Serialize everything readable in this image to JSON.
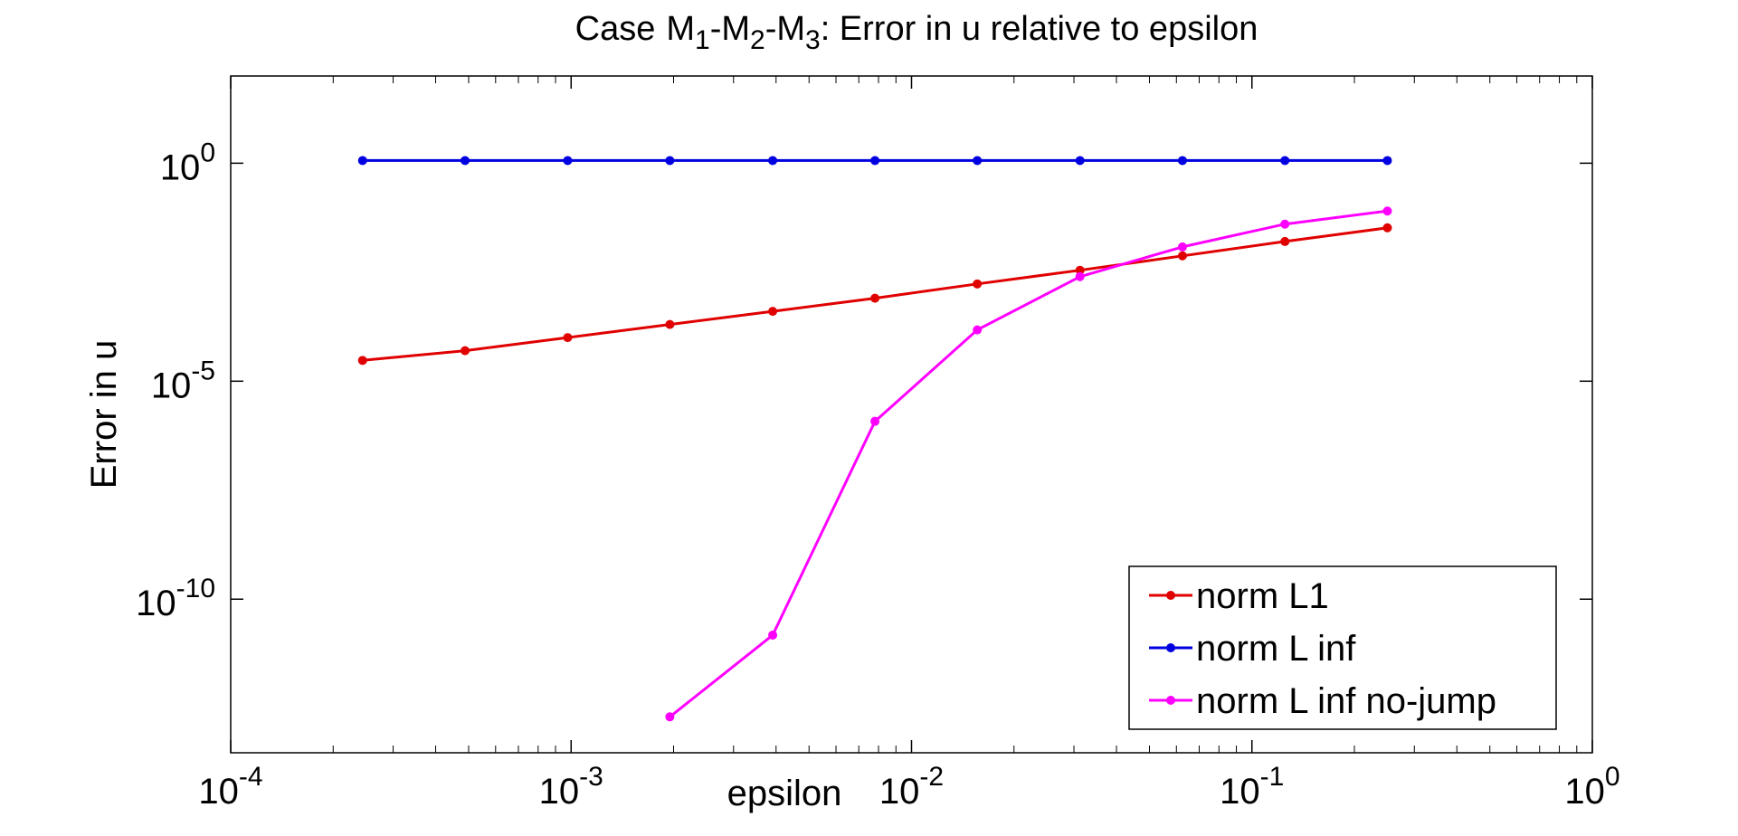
{
  "chart_data": {
    "type": "line",
    "title": {
      "prefix": "Case",
      "parts": [
        {
          "text": "M",
          "sub": "1"
        },
        {
          "text": "-M",
          "sub": "2"
        },
        {
          "text": "-M",
          "sub": "3"
        }
      ],
      "suffix": ": Error in u relative to epsilon"
    },
    "xlabel": "epsilon",
    "ylabel": "Error in u",
    "x_scale": "log",
    "y_scale": "log",
    "xlim": [
      0.0001,
      1
    ],
    "ylim": [
      3e-14,
      100
    ],
    "x_ticks": [
      {
        "value": 0.0001,
        "base": "10",
        "exp": "-4"
      },
      {
        "value": 0.001,
        "base": "10",
        "exp": "-3"
      },
      {
        "value": 0.01,
        "base": "10",
        "exp": "-2"
      },
      {
        "value": 0.1,
        "base": "10",
        "exp": "-1"
      },
      {
        "value": 1,
        "base": "10",
        "exp": "0"
      }
    ],
    "y_ticks": [
      {
        "value": 1e-10,
        "base": "10",
        "exp": "-10"
      },
      {
        "value": 1e-05,
        "base": "10",
        "exp": "-5"
      },
      {
        "value": 1,
        "base": "10",
        "exp": "0"
      }
    ],
    "grid": false,
    "legend_position": "bottom-right",
    "series": [
      {
        "name": "norm L1",
        "color": "#e00000",
        "x": [
          0.000244,
          0.000488,
          0.000977,
          0.00195,
          0.00391,
          0.00781,
          0.0156,
          0.03125,
          0.0625,
          0.125,
          0.25
        ],
        "y": [
          3e-05,
          5e-05,
          0.0001,
          0.0002,
          0.0004,
          0.0008,
          0.0017,
          0.0035,
          0.0075,
          0.016,
          0.033
        ]
      },
      {
        "name": "norm L inf",
        "color": "#0000e0",
        "x": [
          0.000244,
          0.000488,
          0.000977,
          0.00195,
          0.00391,
          0.00781,
          0.0156,
          0.03125,
          0.0625,
          0.125,
          0.25
        ],
        "y": [
          1.15,
          1.15,
          1.15,
          1.15,
          1.15,
          1.15,
          1.15,
          1.15,
          1.15,
          1.15,
          1.15
        ]
      },
      {
        "name": "norm L inf no-jump",
        "color": "#ff00ff",
        "x": [
          0.00195,
          0.00391,
          0.00781,
          0.0156,
          0.03125,
          0.0625,
          0.125,
          0.25
        ],
        "y": [
          2e-13,
          1.5e-11,
          1.2e-06,
          0.00015,
          0.0025,
          0.012,
          0.04,
          0.08
        ]
      }
    ]
  }
}
